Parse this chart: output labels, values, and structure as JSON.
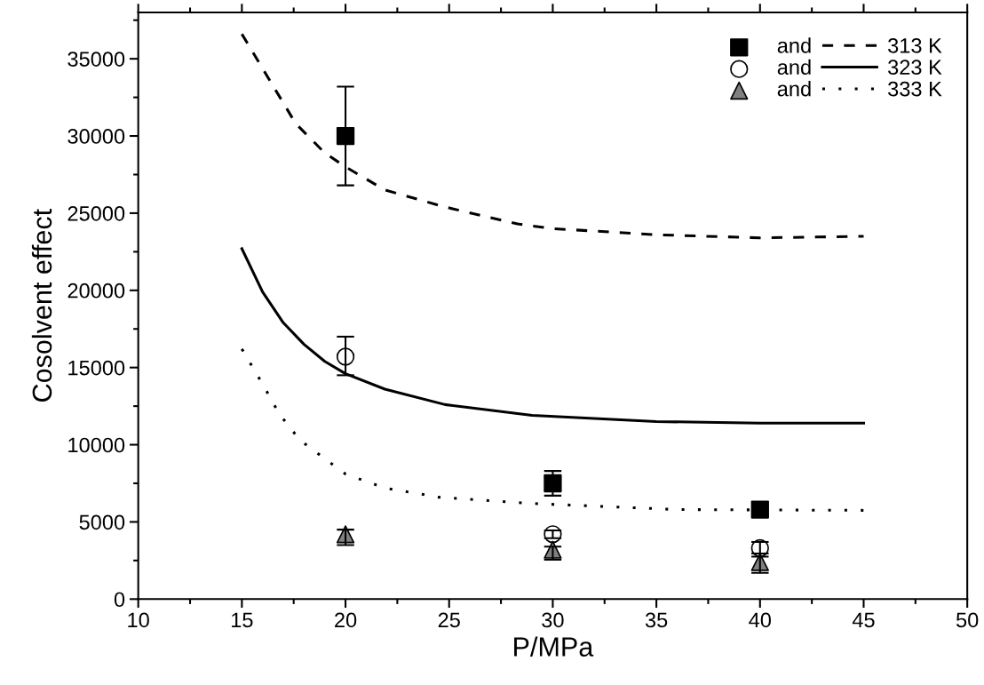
{
  "chart_data": {
    "type": "scatter",
    "xlabel": "P/MPa",
    "ylabel": "Cosolvent effect",
    "xlim": [
      10,
      50
    ],
    "xticks": [
      10,
      15,
      20,
      25,
      30,
      35,
      40,
      45,
      50
    ],
    "ylim": [
      0,
      38000
    ],
    "yticks": [
      0,
      5000,
      10000,
      15000,
      20000,
      25000,
      30000,
      35000
    ],
    "grid": false,
    "legend": "top right",
    "series": [
      {
        "name": "and",
        "marker": "square",
        "color": "#000000",
        "x": [
          20,
          30,
          40
        ],
        "values": [
          30000,
          7500,
          5800
        ],
        "errors": [
          [
            26800,
            33200
          ],
          [
            6700,
            8300
          ],
          null
        ]
      },
      {
        "name": "and",
        "marker": "circle",
        "color": "#ffffff",
        "x": [
          20,
          30,
          40
        ],
        "values": [
          15700,
          4200,
          3300
        ],
        "errors": [
          [
            14500,
            17000
          ],
          [
            3950,
            4450
          ],
          [
            2950,
            3700
          ]
        ]
      },
      {
        "name": "and",
        "marker": "triangle",
        "color": "#808080",
        "x": [
          20,
          30,
          40
        ],
        "values": [
          4200,
          3200,
          2400
        ],
        "errors": [
          [
            3500,
            4500
          ],
          [
            2550,
            3400
          ],
          [
            1700,
            2750
          ]
        ]
      },
      {
        "name": "313 K",
        "type": "line",
        "line_style": "dashed",
        "color": "#000000",
        "x": [
          15,
          17.6,
          19,
          20,
          21.9,
          24.8,
          28.3,
          30,
          35,
          40,
          45
        ],
        "values": [
          36600,
          30800,
          28900,
          28000,
          26500,
          25400,
          24300,
          24000,
          23600,
          23400,
          23500
        ]
      },
      {
        "name": "323 K",
        "type": "line",
        "line_style": "solid",
        "color": "#000000",
        "x": [
          15,
          16,
          17,
          18,
          19,
          20,
          21.9,
          24.8,
          29,
          35,
          40,
          45
        ],
        "values": [
          22700,
          19900,
          17900,
          16500,
          15400,
          14600,
          13600,
          12600,
          11900,
          11500,
          11400,
          11400
        ]
      },
      {
        "name": "333 K",
        "type": "line",
        "line_style": "dotted",
        "color": "#000000",
        "x": [
          15,
          16.1,
          16.8,
          17.8,
          19.1,
          20,
          21.9,
          24.5,
          28.9,
          36,
          45
        ],
        "values": [
          16200,
          13700,
          12000,
          10300,
          9000,
          8100,
          7200,
          6600,
          6200,
          5800,
          5750
        ]
      }
    ]
  }
}
